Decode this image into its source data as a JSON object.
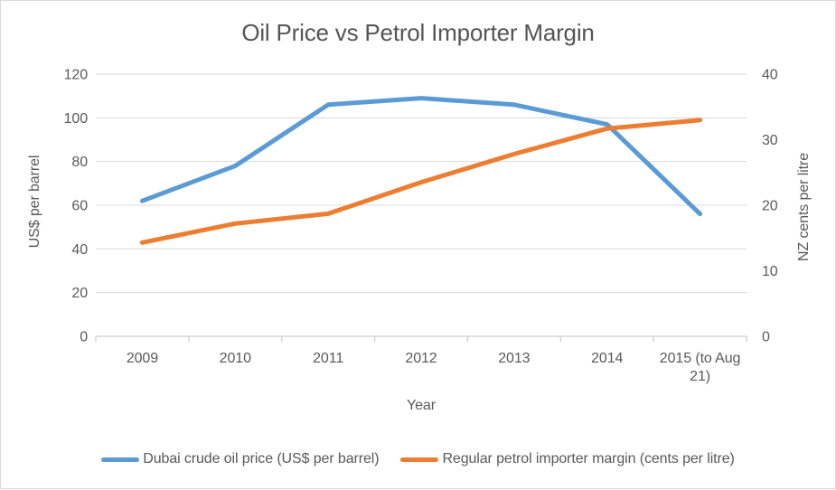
{
  "colors": {
    "background": "#ffffff",
    "frame_border": "#d9d9d9",
    "text": "#595959",
    "title_text": "#555555",
    "gridline": "#d9d9d9",
    "axis_line": "#cfcfcf"
  },
  "chart_data": {
    "type": "line",
    "title": "Oil Price vs Petrol Importer Margin",
    "xlabel": "Year",
    "ylabel_left": "US$ per barrel",
    "ylabel_right": "NZ cents per litre",
    "categories": [
      "2009",
      "2010",
      "2011",
      "2012",
      "2013",
      "2014",
      "2015 (to Aug\n21)"
    ],
    "left_axis": {
      "min": 0,
      "max": 120,
      "step": 20,
      "ticks": [
        0,
        20,
        40,
        60,
        80,
        100,
        120
      ]
    },
    "right_axis": {
      "min": 0,
      "max": 40,
      "step": 10,
      "ticks": [
        0,
        10,
        20,
        30,
        40
      ]
    },
    "grid": true,
    "legend_position": "bottom",
    "series": [
      {
        "name": "Dubai crude oil price (US$ per barrel)",
        "axis": "left",
        "color": "#5b9bd5",
        "values": [
          62,
          78,
          106,
          109,
          106,
          97,
          56
        ]
      },
      {
        "name": "Regular petrol importer margin (cents per litre)",
        "axis": "right",
        "color": "#ed7d31",
        "values": [
          14.3,
          17.2,
          18.7,
          23.5,
          27.8,
          31.7,
          33
        ]
      }
    ]
  }
}
